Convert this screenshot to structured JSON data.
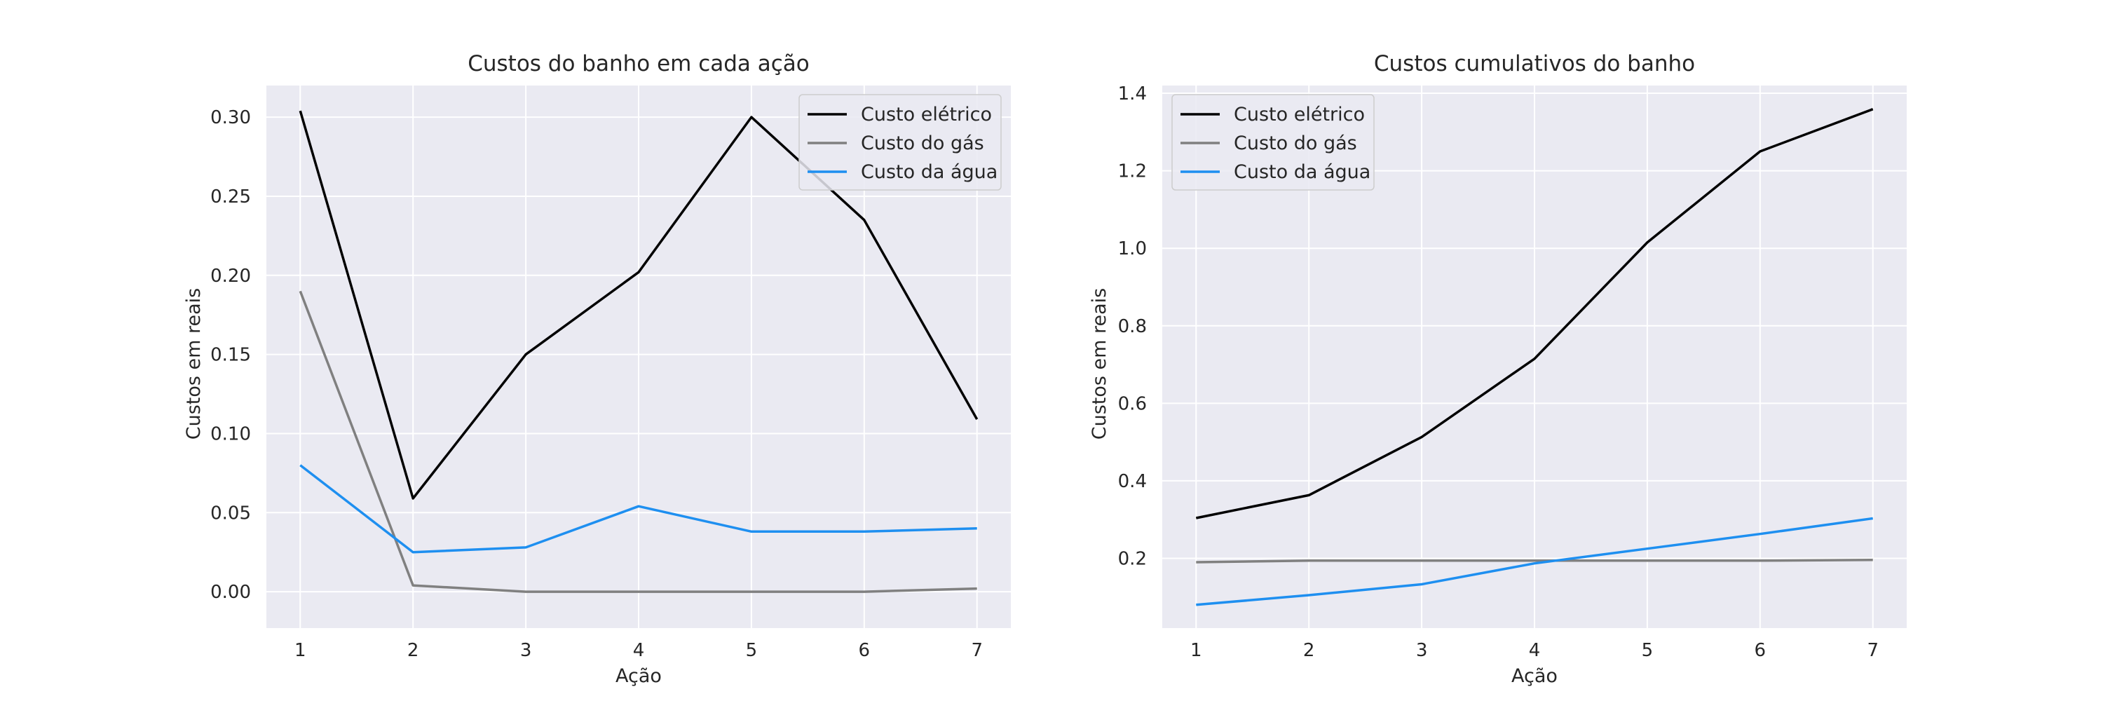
{
  "figure": {
    "background": "#ffffff",
    "plot_background": "#eaeaf2",
    "grid_color": "#ffffff"
  },
  "chart_data": [
    {
      "type": "line",
      "title": "Custos do banho em cada ação",
      "xlabel": "Ação",
      "ylabel": "Custos em reais",
      "x": [
        1,
        2,
        3,
        4,
        5,
        6,
        7
      ],
      "xticks": [
        "1",
        "2",
        "3",
        "4",
        "5",
        "6",
        "7"
      ],
      "yticks": [
        "0.00",
        "0.05",
        "0.10",
        "0.15",
        "0.20",
        "0.25",
        "0.30"
      ],
      "ytick_values": [
        0.0,
        0.05,
        0.1,
        0.15,
        0.2,
        0.25,
        0.3
      ],
      "xlim": [
        0.7,
        7.3
      ],
      "ylim": [
        -0.023,
        0.32
      ],
      "grid": true,
      "legend_position": "top-right",
      "series": [
        {
          "name": "Custo elétrico",
          "color": "#000000",
          "values": [
            0.304,
            0.059,
            0.15,
            0.202,
            0.3,
            0.235,
            0.109
          ]
        },
        {
          "name": "Custo do gás",
          "color": "#808080",
          "values": [
            0.19,
            0.004,
            0.0,
            0.0,
            0.0,
            0.0,
            0.002
          ]
        },
        {
          "name": "Custo da água",
          "color": "#1e8ff0",
          "values": [
            0.08,
            0.025,
            0.028,
            0.054,
            0.038,
            0.038,
            0.04
          ]
        }
      ]
    },
    {
      "type": "line",
      "title": "Custos cumulativos do banho",
      "xlabel": "Ação",
      "ylabel": "Custos em reais",
      "x": [
        1,
        2,
        3,
        4,
        5,
        6,
        7
      ],
      "xticks": [
        "1",
        "2",
        "3",
        "4",
        "5",
        "6",
        "7"
      ],
      "yticks": [
        "0.2",
        "0.4",
        "0.6",
        "0.8",
        "1.0",
        "1.2",
        "1.4"
      ],
      "ytick_values": [
        0.2,
        0.4,
        0.6,
        0.8,
        1.0,
        1.2,
        1.4
      ],
      "xlim": [
        0.7,
        7.3
      ],
      "ylim": [
        0.02,
        1.42
      ],
      "grid": true,
      "legend_position": "top-left",
      "series": [
        {
          "name": "Custo elétrico",
          "color": "#000000",
          "values": [
            0.304,
            0.363,
            0.513,
            0.715,
            1.015,
            1.25,
            1.359
          ]
        },
        {
          "name": "Custo do gás",
          "color": "#808080",
          "values": [
            0.19,
            0.194,
            0.194,
            0.194,
            0.194,
            0.194,
            0.196
          ]
        },
        {
          "name": "Custo da água",
          "color": "#1e8ff0",
          "values": [
            0.08,
            0.105,
            0.133,
            0.187,
            0.225,
            0.263,
            0.303
          ]
        }
      ]
    }
  ]
}
